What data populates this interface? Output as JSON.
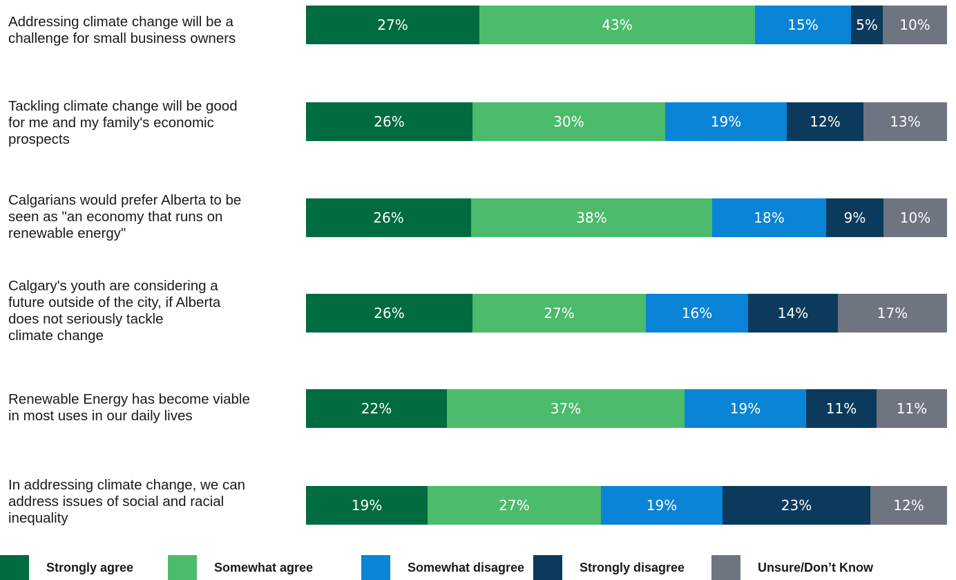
{
  "chart_data": {
    "type": "bar",
    "orientation": "horizontal-stacked-100",
    "categories": [
      "Addressing climate change will be a challenge for small business owners",
      "Tackling climate change will be good for me and my family's economic prospects",
      "Calgarians would prefer Alberta to be seen as \"an economy that runs on renewable energy\"",
      "Calgary's youth are considering a future outside of the city, if Alberta does not seriously tackle climate change",
      "Renewable Energy has become viable in most uses in our daily lives",
      "In addressing climate change, we can address issues of social and racial inequality"
    ],
    "category_lines": [
      [
        "Addressing climate change will be a",
        "challenge for small business owners"
      ],
      [
        "Tackling climate change will be good",
        "for me and my family's economic",
        "prospects"
      ],
      [
        "Calgarians would prefer Alberta to be",
        "seen as \"an economy that runs on",
        "renewable energy\""
      ],
      [
        "Calgary's youth are considering a",
        "future outside of the city, if Alberta",
        "does not seriously tackle",
        "climate change"
      ],
      [
        "Renewable Energy has become viable",
        "in most uses in our daily lives"
      ],
      [
        "In addressing climate change, we can",
        "address issues of social and racial",
        "inequality"
      ]
    ],
    "series": [
      {
        "name": "Strongly agree",
        "color": "#006b3f",
        "values": [
          27,
          26,
          26,
          26,
          22,
          19
        ]
      },
      {
        "name": "Somewhat agree",
        "color": "#4cbb6b",
        "values": [
          43,
          30,
          38,
          27,
          37,
          27
        ]
      },
      {
        "name": "Somewhat disagree",
        "color": "#0a84d6",
        "values": [
          15,
          19,
          18,
          16,
          19,
          19
        ]
      },
      {
        "name": "Strongly disagree",
        "color": "#0b3a5c",
        "values": [
          5,
          12,
          9,
          14,
          11,
          23
        ]
      },
      {
        "name": "Unsure/Don’t Know",
        "color": "#6e7480",
        "values": [
          10,
          13,
          10,
          17,
          11,
          12
        ]
      }
    ],
    "value_suffix": "%",
    "legend_position": "bottom",
    "grid": false
  }
}
